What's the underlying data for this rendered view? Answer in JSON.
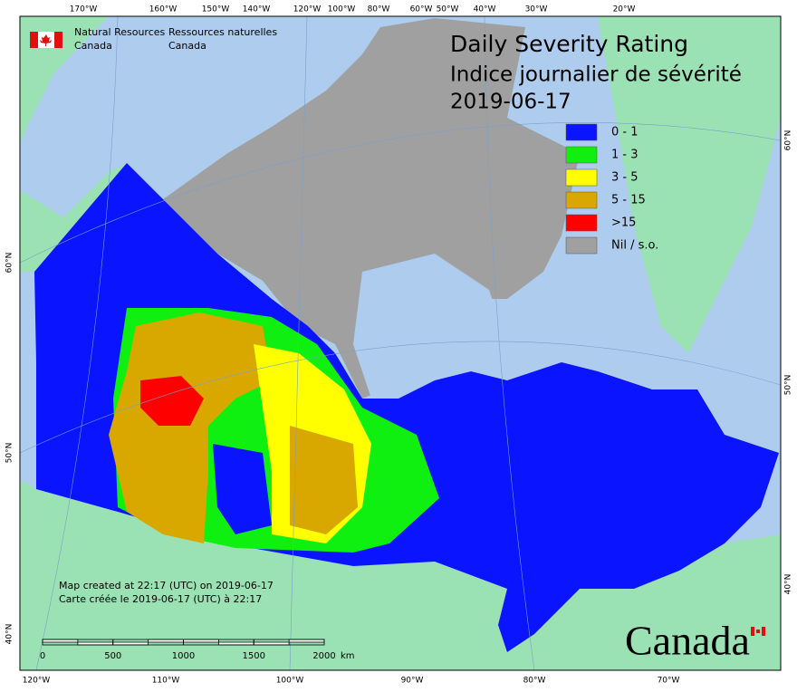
{
  "header": {
    "org_en": [
      "Natural Resources",
      "Canada"
    ],
    "org_fr": [
      "Ressources naturelles",
      "Canada"
    ]
  },
  "title": [
    "Daily Severity Rating",
    "Indice journalier de sévérité",
    "2019-06-17"
  ],
  "legend": [
    {
      "label": "0 - 1",
      "color": "#0a14ff"
    },
    {
      "label": "1 - 3",
      "color": "#10f010"
    },
    {
      "label": "3 - 5",
      "color": "#ffff00"
    },
    {
      "label": "5 - 15",
      "color": "#d8a800"
    },
    {
      "label": ">15",
      "color": "#ff0000"
    },
    {
      "label": "Nil / s.o.",
      "color": "#a0a0a0"
    }
  ],
  "graticule": {
    "top": [
      "170°W",
      "160°W",
      "150°W",
      "140°W",
      "120°W",
      "100°W",
      "80°W",
      "60°W",
      "50°W",
      "40°W",
      "30°W",
      "20°W"
    ],
    "bottom": [
      "120°W",
      "110°W",
      "100°W",
      "90°W",
      "80°W",
      "70°W"
    ],
    "left": [
      "60°N",
      "50°N",
      "40°N"
    ],
    "right": [
      "60°N",
      "50°N",
      "40°N"
    ]
  },
  "scale": {
    "labels": [
      "0",
      "500",
      "1000",
      "1500",
      "2000"
    ],
    "unit": "km"
  },
  "notes": [
    "Map created at 22:17 (UTC) on 2019-06-17",
    "Carte créée le 2019-06-17 (UTC) à 22:17"
  ],
  "wordmark": "Canada"
}
